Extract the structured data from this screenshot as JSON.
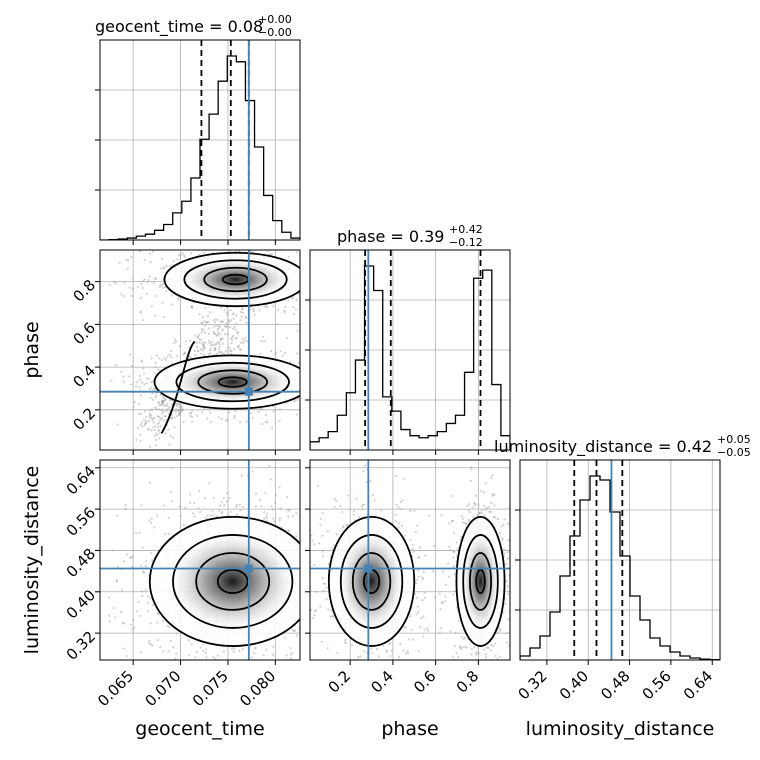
{
  "chart_data": {
    "type": "corner",
    "parameters": [
      "geocent_time",
      "phase",
      "luminosity_distance"
    ],
    "titles": [
      {
        "param": "geocent_time",
        "label": "geocent_time = 0.08",
        "plus": "+0.00",
        "minus": "−0.00"
      },
      {
        "param": "phase",
        "label": "phase = 0.39",
        "plus": "+0.42",
        "minus": "−0.12"
      },
      {
        "param": "luminosity_distance",
        "label": "luminosity_distance = 0.42",
        "plus": "+0.05",
        "minus": "−0.05"
      }
    ],
    "axis_labels": {
      "x": [
        "geocent_time",
        "phase",
        "luminosity_distance"
      ],
      "y": [
        "phase",
        "luminosity_distance"
      ]
    },
    "ranges": {
      "geocent_time": [
        0.0615,
        0.0826
      ],
      "phase": [
        0.012,
        0.948
      ],
      "luminosity_distance": [
        0.268,
        0.655
      ]
    },
    "ticks": {
      "geocent_time": [
        "0.065",
        "0.070",
        "0.075",
        "0.080"
      ],
      "phase": [
        "0.2",
        "0.4",
        "0.6",
        "0.8"
      ],
      "phase_y": [
        "0.2",
        "0.4",
        "0.6",
        "0.8"
      ],
      "luminosity_distance": [
        "0.32",
        "0.40",
        "0.48",
        "0.56",
        "0.64"
      ]
    },
    "truths": {
      "geocent_time": 0.0772,
      "phase": 0.285,
      "luminosity_distance": 0.445
    },
    "quantiles": {
      "geocent_time": [
        0.0722,
        0.0753,
        0.0772
      ],
      "phase": [
        0.27,
        0.39,
        0.81
      ],
      "luminosity_distance": [
        0.373,
        0.416,
        0.466
      ]
    },
    "histograms": {
      "geocent_time": {
        "bins": [
          0.0615,
          0.0826
        ],
        "values": [
          0,
          0.2,
          0.5,
          1,
          2,
          3,
          5,
          8,
          14,
          20,
          32,
          52,
          65,
          82,
          95,
          92,
          72,
          48,
          23,
          10,
          4,
          1
        ]
      },
      "phase": {
        "bins": [
          0.012,
          0.948
        ],
        "values": [
          4,
          6,
          9,
          17,
          28,
          44,
          90,
          78,
          26,
          19,
          10,
          7,
          6,
          7,
          9,
          13,
          17,
          38,
          84,
          88,
          32,
          7
        ]
      },
      "luminosity_distance": {
        "bins": [
          0.268,
          0.655
        ],
        "values": [
          2,
          6,
          12,
          24,
          42,
          62,
          80,
          92,
          90,
          74,
          52,
          32,
          20,
          11,
          7,
          4,
          2,
          1,
          0.4,
          0.2
        ]
      }
    },
    "grid": true
  }
}
